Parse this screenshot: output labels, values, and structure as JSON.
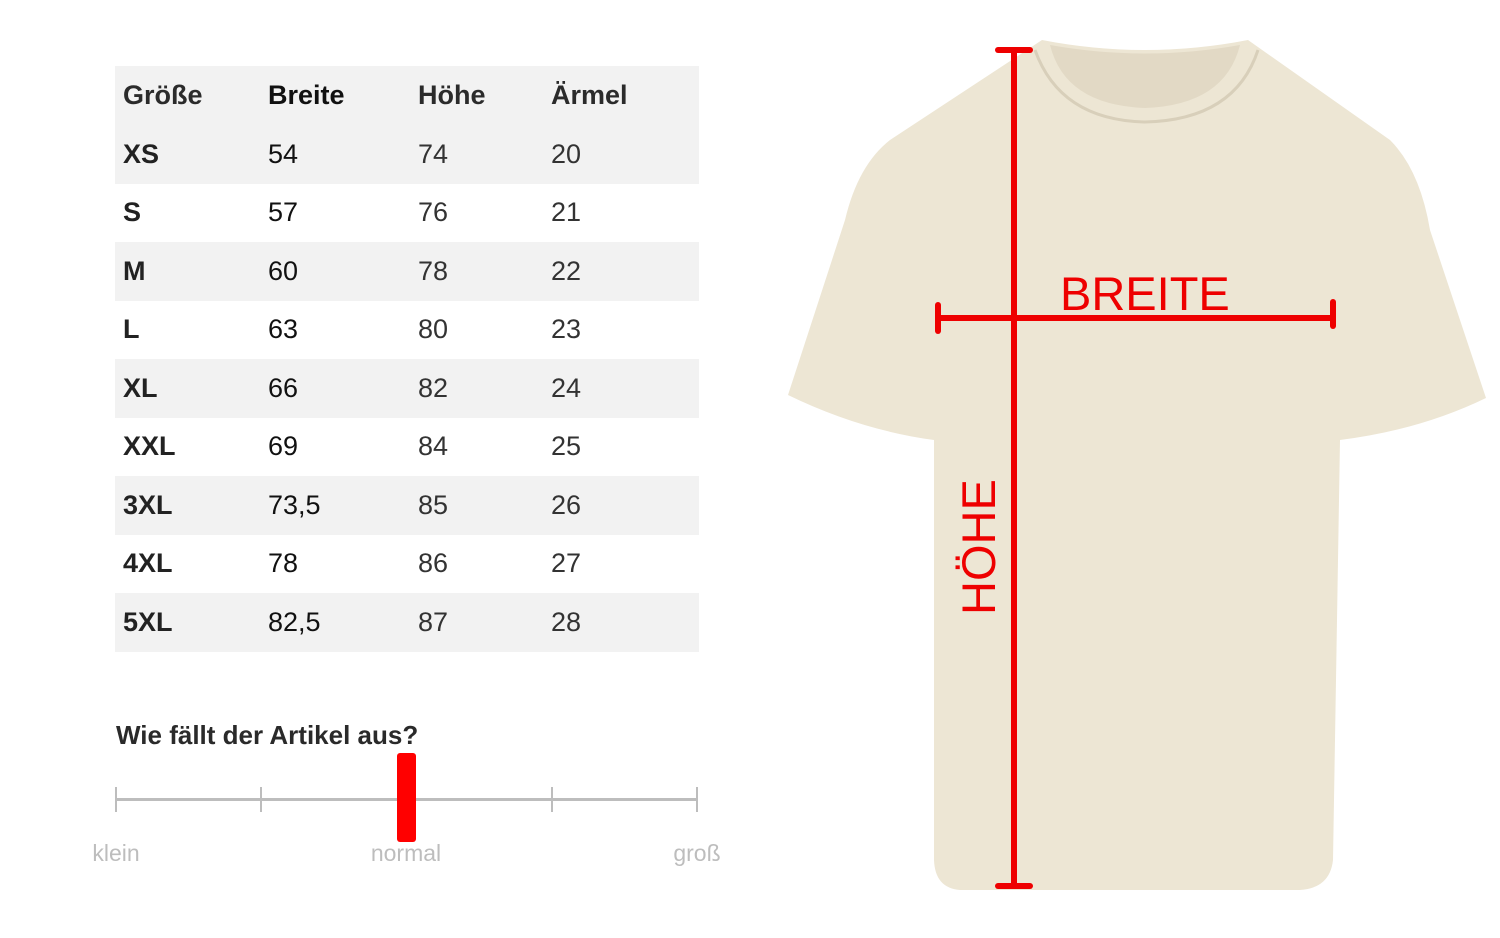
{
  "size_table": {
    "headers": [
      "Größe",
      "Breite",
      "Höhe",
      "Ärmel"
    ],
    "rows": [
      [
        "XS",
        "54",
        "74",
        "20"
      ],
      [
        "S",
        "57",
        "76",
        "21"
      ],
      [
        "M",
        "60",
        "78",
        "22"
      ],
      [
        "L",
        "63",
        "80",
        "23"
      ],
      [
        "XL",
        "66",
        "82",
        "24"
      ],
      [
        "XXL",
        "69",
        "84",
        "25"
      ],
      [
        "3XL",
        "73,5",
        "85",
        "26"
      ],
      [
        "4XL",
        "78",
        "86",
        "27"
      ],
      [
        "5XL",
        "82,5",
        "87",
        "28"
      ]
    ]
  },
  "fit": {
    "title": "Wie fällt der Artikel aus?",
    "labels": [
      "klein",
      "normal",
      "groß"
    ],
    "value": 0.5,
    "ticks": 5,
    "marker_color": "#ff0000"
  },
  "diagram": {
    "width_label": "BREITE",
    "height_label": "HÖHE",
    "shirt_color": "#ede6d4",
    "line_color": "#ee0000"
  }
}
